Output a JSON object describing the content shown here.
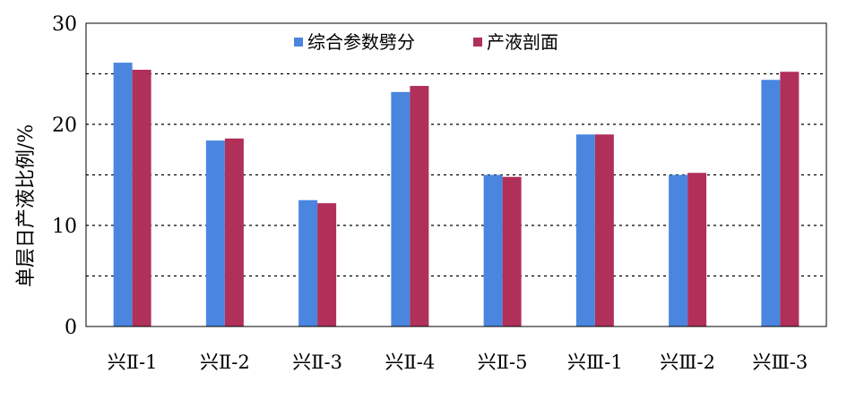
{
  "chart_data": {
    "type": "bar",
    "title": "",
    "xlabel": "",
    "ylabel": "单层日产液比例/%",
    "ylim": [
      0,
      30
    ],
    "yticks": [
      0,
      10,
      20,
      30
    ],
    "grid": "dotted-horizontal",
    "legend": "top-center",
    "categories": [
      "兴Ⅱ-1",
      "兴Ⅱ-2",
      "兴Ⅱ-3",
      "兴Ⅱ-4",
      "兴Ⅱ-5",
      "兴Ⅲ-1",
      "兴Ⅲ-2",
      "兴Ⅲ-3"
    ],
    "series": [
      {
        "name": "综合参数劈分",
        "color": "#4a86e0",
        "values": [
          26.1,
          18.4,
          12.5,
          23.2,
          15.0,
          19.0,
          15.0,
          24.4
        ]
      },
      {
        "name": "产液剖面",
        "color": "#b0305a",
        "values": [
          25.4,
          18.6,
          12.2,
          23.8,
          14.8,
          19.0,
          15.2,
          25.2
        ]
      }
    ]
  }
}
